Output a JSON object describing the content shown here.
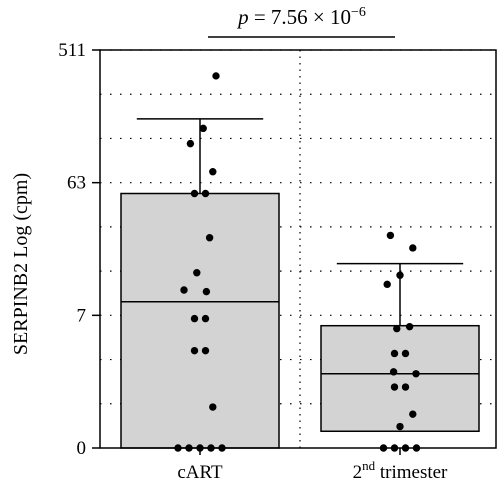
{
  "chart_data": {
    "type": "box",
    "ylabel": "SERPINB2 Log (cpm)",
    "y_scale": "log2(cpm+1)",
    "y_ticks": [
      "0",
      "7",
      "63",
      "511"
    ],
    "grid": true,
    "annotation": {
      "p_symbol": "p",
      "text": " = 7.56 × 10",
      "exponent": "−6"
    },
    "categories": [
      {
        "label": "cART",
        "superscript": "",
        "suffix": ""
      },
      {
        "label": "2",
        "superscript": "nd",
        "suffix": " trimester"
      }
    ],
    "boxes": [
      {
        "name": "cART",
        "q1": 0,
        "median": 8.9,
        "q3": 53,
        "whisker_low": 0,
        "whisker_high": 173,
        "points": [
          0,
          0,
          0,
          0,
          0,
          0.9,
          3.6,
          3.6,
          6.6,
          6.6,
          10.6,
          10.9,
          14.6,
          26,
          53,
          53,
          75,
          117,
          149,
          340
        ]
      },
      {
        "name": "2nd trimester",
        "q1": 0.3,
        "median": 2.2,
        "q3": 5.8,
        "whisker_low": 0,
        "whisker_high": 17,
        "points": [
          0,
          0,
          0,
          0,
          0.4,
          0.7,
          1.6,
          1.6,
          2.2,
          2.3,
          3.4,
          3.4,
          5.5,
          5.7,
          12,
          14,
          22,
          27
        ]
      }
    ]
  }
}
